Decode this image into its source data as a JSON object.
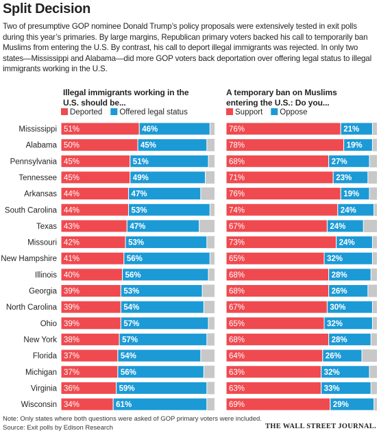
{
  "chart_data": {
    "type": "bar",
    "title": "Split Decision",
    "subtitle": "Two of presumptive GOP nominee Donald Trump’s policy proposals were extensively tested in exit polls during this year’s primaries. By large margins, Republican primary voters backed his call to temporarily ban Muslims from entering the U.S. By contrast, his call to deport illegal immigrants was rejected. In only two states—Mississippi and Alabama—did more GOP voters back deportation over offering legal status to illegal immigrants working in the U.S.",
    "categories": [
      "Mississippi",
      "Alabama",
      "Pennsylvania",
      "Tennessee",
      "Arkansas",
      "South Carolina",
      "Texas",
      "Missouri",
      "New Hampshire",
      "Illinois",
      "Georgia",
      "North Carolina",
      "Ohio",
      "New York",
      "Florida",
      "Michigan",
      "Virginia",
      "Wisconsin"
    ],
    "panels": [
      {
        "title": "Illegal immigrants working in the U.S. should be...",
        "xlim": [
          0,
          100
        ],
        "series": [
          {
            "name": "Deported",
            "color": "#ef4a4f",
            "values": [
              51,
              50,
              45,
              45,
              44,
              44,
              43,
              42,
              41,
              40,
              39,
              39,
              39,
              38,
              37,
              37,
              36,
              34
            ],
            "value_labels": [
              "51%",
              "50%",
              "45%",
              "45%",
              "44%",
              "44%",
              "43%",
              "42%",
              "41%",
              "40%",
              "39%",
              "39%",
              "39%",
              "38%",
              "37%",
              "37%",
              "36%",
              "34%"
            ]
          },
          {
            "name": "Offered legal status",
            "color": "#1b9ad6",
            "values": [
              46,
              45,
              51,
              49,
              47,
              53,
              47,
              53,
              56,
              56,
              53,
              54,
              57,
              57,
              54,
              56,
              59,
              61
            ],
            "value_labels": [
              "46%",
              "45%",
              "51%",
              "49%",
              "47%",
              "53%",
              "47%",
              "53%",
              "56%",
              "56%",
              "53%",
              "54%",
              "57%",
              "57%",
              "54%",
              "56%",
              "59%",
              "61%"
            ]
          }
        ]
      },
      {
        "title": "A temporary ban on Muslims entering the U.S.: Do you...",
        "xlim": [
          0,
          100
        ],
        "series": [
          {
            "name": "Support",
            "color": "#ef4a4f",
            "values": [
              76,
              78,
              68,
              71,
              76,
              74,
              67,
              73,
              65,
              68,
              68,
              67,
              65,
              68,
              64,
              63,
              63,
              69
            ],
            "value_labels": [
              "76%",
              "78%",
              "68%",
              "71%",
              "76%",
              "74%",
              "67%",
              "73%",
              "65%",
              "68%",
              "68%",
              "67%",
              "65%",
              "68%",
              "64%",
              "63%",
              "63%",
              "69%"
            ]
          },
          {
            "name": "Oppose",
            "color": "#1b9ad6",
            "values": [
              21,
              19,
              27,
              23,
              19,
              24,
              24,
              24,
              32,
              28,
              26,
              30,
              32,
              28,
              26,
              32,
              33,
              29
            ],
            "value_labels": [
              "21%",
              "19%",
              "27%",
              "23%",
              "19%",
              "24%",
              "24%",
              "24%",
              "32%",
              "28%",
              "26%",
              "30%",
              "32%",
              "28%",
              "26%",
              "32%",
              "33%",
              "29%"
            ]
          }
        ]
      }
    ],
    "note": "Note: Only states where both questions were asked of GOP primary voters were included.",
    "source": "Source: Exit polls by Edison Research",
    "publisher": "THE WALL STREET JOURNAL."
  }
}
